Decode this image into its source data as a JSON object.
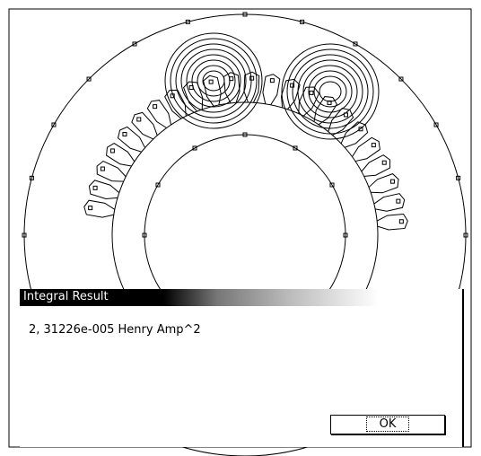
{
  "dialog": {
    "title": "Integral Result",
    "result": "2, 31226e-005 Henry Amp^2",
    "button": "OK"
  }
}
